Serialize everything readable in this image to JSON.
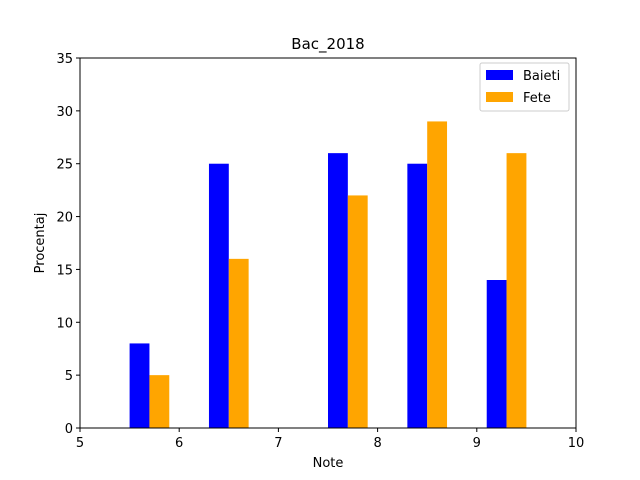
{
  "chart_data": {
    "type": "bar",
    "title": "Bac_2018",
    "xlabel": "Note",
    "ylabel": "Procentaj",
    "xlim": [
      5,
      10
    ],
    "ylim": [
      0,
      35
    ],
    "xticks": [
      "5",
      "6",
      "7",
      "8",
      "9",
      "10"
    ],
    "yticks": [
      "0",
      "5",
      "10",
      "15",
      "20",
      "25",
      "30",
      "35"
    ],
    "categories": [
      5.7,
      6.5,
      7.7,
      8.5,
      9.3
    ],
    "bar_width": 0.2,
    "series": [
      {
        "name": "Baieti",
        "color": "#0000ff",
        "x": [
          5.6,
          6.4,
          7.6,
          8.4,
          9.2
        ],
        "values": [
          8,
          25,
          26,
          25,
          14
        ]
      },
      {
        "name": "Fete",
        "color": "#ffa500",
        "x": [
          5.8,
          6.6,
          7.8,
          8.6,
          9.4
        ],
        "values": [
          5,
          16,
          22,
          29,
          26
        ]
      }
    ],
    "legend_position": "top-right",
    "grid": false
  }
}
